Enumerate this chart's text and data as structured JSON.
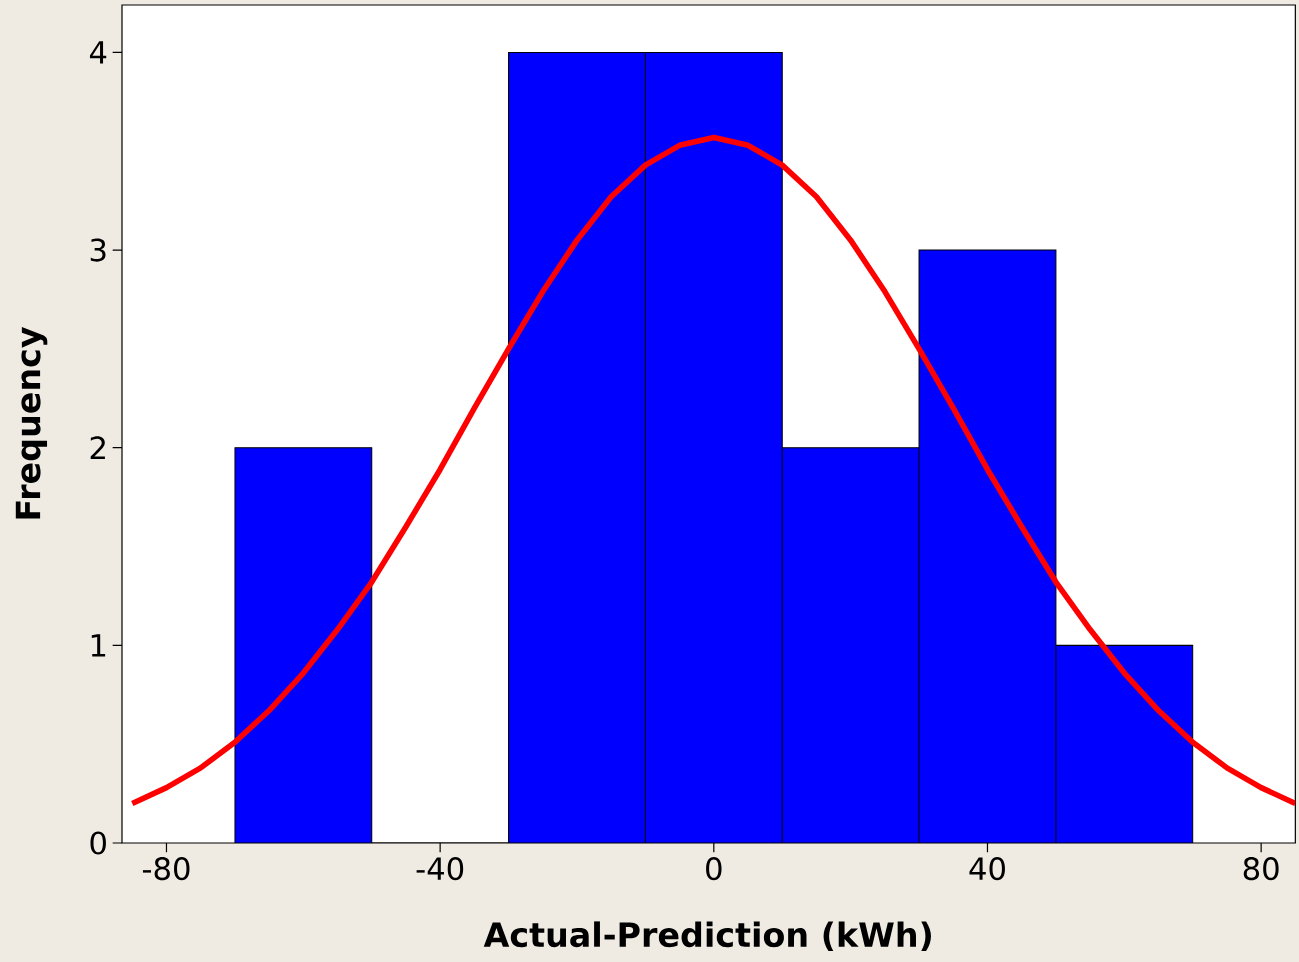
{
  "chart_data": {
    "type": "histogram",
    "xlabel": "Actual-Prediction (kWh)",
    "ylabel": "Frequency",
    "xlim": [
      -86.5,
      85
    ],
    "ylim": [
      0,
      4.24
    ],
    "xticks": [
      -80,
      -40,
      0,
      40,
      80
    ],
    "yticks": [
      0,
      1,
      2,
      3,
      4
    ],
    "grid": false,
    "series": [
      {
        "bins": [
          -70,
          -50,
          -30,
          -10,
          10,
          30,
          50,
          70
        ],
        "values": [
          2,
          0,
          4,
          4,
          2,
          3,
          1
        ],
        "color": "#0000ff"
      },
      {
        "type": "line",
        "color": "#ff0000",
        "x": [
          -85,
          -80,
          -75,
          -70,
          -65,
          -60,
          -55,
          -50,
          -45,
          -40,
          -35,
          -30,
          -25,
          -20,
          -15,
          -10,
          -5,
          0,
          5,
          10,
          15,
          20,
          25,
          30,
          35,
          40,
          45,
          50,
          55,
          60,
          65,
          70,
          75,
          80,
          85
        ],
        "values": [
          0.2,
          0.28,
          0.38,
          0.51,
          0.67,
          0.86,
          1.08,
          1.32,
          1.6,
          1.89,
          2.2,
          2.5,
          2.79,
          3.05,
          3.27,
          3.43,
          3.53,
          3.57,
          3.53,
          3.43,
          3.27,
          3.05,
          2.79,
          2.5,
          2.2,
          1.89,
          1.6,
          1.32,
          1.08,
          0.86,
          0.67,
          0.51,
          0.38,
          0.28,
          0.2
        ]
      }
    ]
  }
}
